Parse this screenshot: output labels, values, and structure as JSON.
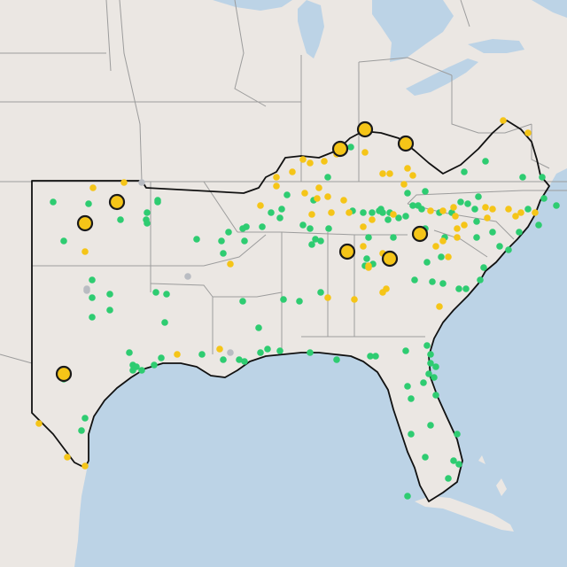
{
  "map": {
    "colors": {
      "water": "#bcd3e6",
      "land": "#ebe7e3",
      "region_fill": "#efece9",
      "state_border": "#9c9c9c",
      "region_border": "#111111",
      "marker_green": "#2ecc71",
      "marker_yellow": "#f5c518",
      "marker_gray": "#b9bcc2",
      "large_marker_stroke": "#1a1a1a"
    },
    "marker_legend": {
      "green": "small-green-station-marker",
      "yellow": "small-yellow-station-marker",
      "gray": "small-gray-station-marker",
      "large": "large-yellow-highlight-marker"
    }
  }
}
